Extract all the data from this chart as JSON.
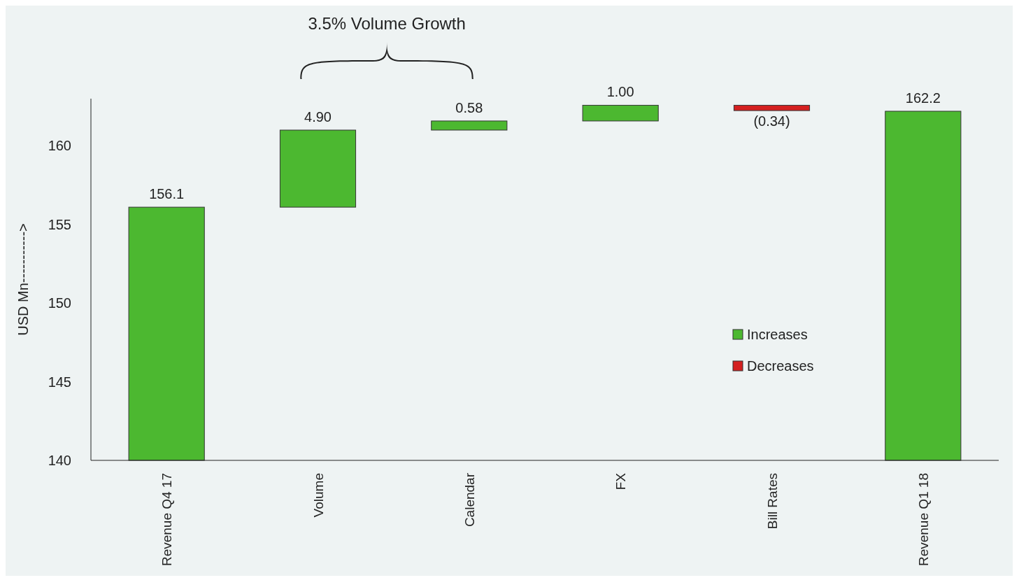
{
  "chart_data": {
    "type": "bar",
    "ylabel": "USD Mn----------->",
    "annotations": [
      "3.5% Volume Growth"
    ],
    "categories": [
      "Revenue Q4 17",
      "Volume",
      "Calendar",
      "FX",
      "Bill Rates",
      "Revenue Q1 18"
    ],
    "series": [
      {
        "name": "Increases",
        "color": "#4cb830",
        "base": [
          null,
          156.1,
          161.0,
          161.58,
          null,
          null
        ],
        "values": [
          156.1,
          4.9,
          0.58,
          1.0,
          null,
          162.2
        ],
        "value_labels": [
          "156.1",
          "4.90",
          "0.58",
          "1.00",
          null,
          "162.2"
        ]
      },
      {
        "name": "Decreases",
        "color": "#d42020",
        "base": [
          null,
          null,
          null,
          null,
          162.58,
          null
        ],
        "values": [
          null,
          null,
          null,
          null,
          -0.34,
          null
        ],
        "value_labels": [
          null,
          null,
          null,
          null,
          "(0.34)",
          null
        ]
      }
    ],
    "ylim": [
      140,
      163
    ],
    "yticks": [
      140,
      145,
      150,
      155,
      160
    ],
    "legend": "right",
    "grid": false
  }
}
